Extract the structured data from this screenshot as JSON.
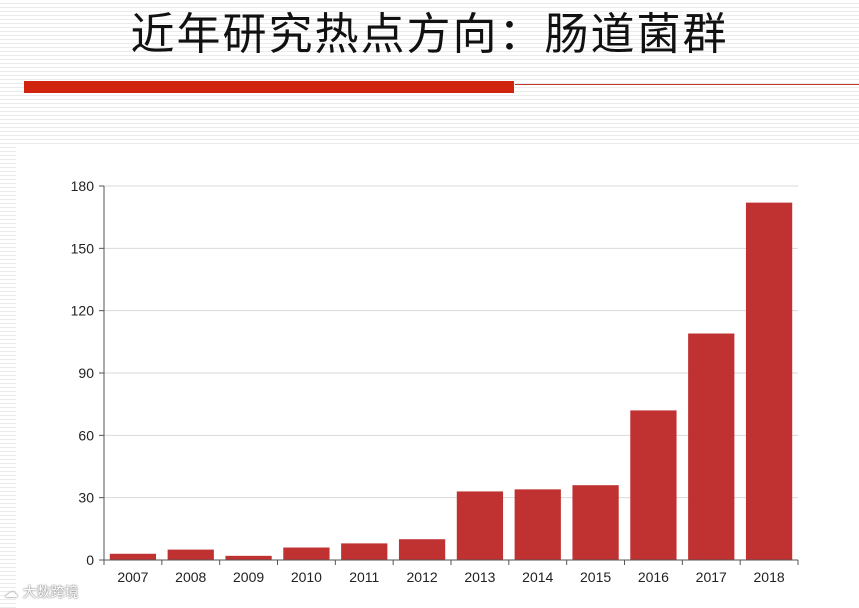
{
  "slide": {
    "title": "近年研究热点方向：肠道菌群",
    "accent_color": "#d0240f"
  },
  "watermark": {
    "text": "大数跨境"
  },
  "chart_data": {
    "type": "bar",
    "title": "",
    "xlabel": "",
    "ylabel": "",
    "categories": [
      "2007",
      "2008",
      "2009",
      "2010",
      "2011",
      "2012",
      "2013",
      "2014",
      "2015",
      "2016",
      "2017",
      "2018"
    ],
    "values": [
      3,
      5,
      2,
      6,
      8,
      10,
      33,
      34,
      36,
      72,
      109,
      172
    ],
    "ylim": [
      0,
      180
    ],
    "yticks": [
      0,
      30,
      60,
      90,
      120,
      150,
      180
    ],
    "grid": true,
    "bar_color": "#c03232"
  }
}
